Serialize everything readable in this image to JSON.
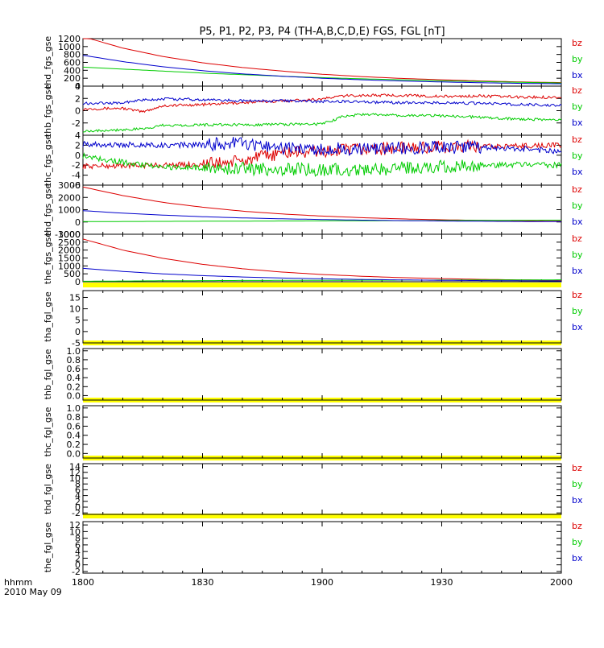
{
  "title": "P5, P1, P2, P3, P4 (TH-A,B,C,D,E) FGS, FGL [nT]",
  "time_axis": {
    "label_line1": "hhmm",
    "label_line2": "2010 May 09",
    "ticks": [
      "1800",
      "1830",
      "1900",
      "1930",
      "2000"
    ]
  },
  "colors": {
    "bx": "#0000cc",
    "by": "#00cc00",
    "bz": "#dd0000",
    "bar": "#ffff00",
    "axis": "#000000"
  },
  "chart_data": [
    {
      "type": "line",
      "panel": "thd_fgs_gse",
      "ylabel": "thd_fgs_gse",
      "ylim": [
        0,
        1200
      ],
      "yticks": [
        "0",
        "200",
        "400",
        "600",
        "800",
        "1000",
        "1200"
      ],
      "legend": [
        "bz",
        "by",
        "bx"
      ],
      "x_minutes": [
        0,
        10,
        20,
        30,
        40,
        50,
        60,
        70,
        80,
        90,
        100,
        110,
        120
      ],
      "series": [
        {
          "name": "bz",
          "values": [
            1250,
            960,
            750,
            590,
            470,
            380,
            300,
            240,
            195,
            160,
            130,
            105,
            90
          ]
        },
        {
          "name": "by",
          "values": [
            480,
            430,
            380,
            330,
            290,
            250,
            215,
            185,
            160,
            135,
            115,
            95,
            80
          ]
        },
        {
          "name": "bx",
          "values": [
            780,
            620,
            490,
            390,
            310,
            250,
            200,
            160,
            130,
            105,
            85,
            70,
            60
          ]
        }
      ]
    },
    {
      "type": "line",
      "panel": "thb_fgs_gse",
      "ylabel": "thb_fgs_gse",
      "ylim": [
        -4,
        4
      ],
      "yticks": [
        "-2",
        "0",
        "2",
        "4"
      ],
      "legend": [
        "bz",
        "by",
        "bx"
      ],
      "x_minutes": [
        0,
        10,
        15,
        20,
        30,
        40,
        50,
        60,
        65,
        70,
        80,
        90,
        100,
        110,
        120
      ],
      "series": [
        {
          "name": "bz",
          "values": [
            0.3,
            0.4,
            -0.2,
            0.8,
            1.0,
            1.3,
            1.6,
            1.9,
            2.4,
            2.5,
            2.5,
            2.3,
            2.4,
            2.2,
            2.2
          ]
        },
        {
          "name": "by",
          "values": [
            -3.3,
            -3.1,
            -3.0,
            -2.4,
            -2.3,
            -2.3,
            -2.2,
            -2.2,
            -1.0,
            -0.6,
            -0.8,
            -0.8,
            -1.1,
            -1.4,
            -1.5
          ]
        },
        {
          "name": "bx",
          "values": [
            1.2,
            1.3,
            1.7,
            1.9,
            1.8,
            1.6,
            1.6,
            1.5,
            1.5,
            1.4,
            1.3,
            1.3,
            1.2,
            1.0,
            0.9
          ]
        }
      ]
    },
    {
      "type": "line",
      "panel": "thc_fgs_gse",
      "ylabel": "thc_fgs_gse",
      "ylim": [
        -6,
        4
      ],
      "yticks": [
        "-6",
        "-4",
        "-2",
        "0",
        "2",
        "4"
      ],
      "legend": [
        "bz",
        "by",
        "bx"
      ],
      "x_minutes": [
        0,
        10,
        20,
        30,
        40,
        50,
        60,
        70,
        80,
        90,
        100,
        110,
        120
      ],
      "series": [
        {
          "name": "bz",
          "values": [
            -2.2,
            -2.1,
            -2.0,
            -1.8,
            -1.2,
            0.5,
            0.7,
            1.2,
            1.4,
            1.6,
            1.7,
            1.9,
            2.0
          ]
        },
        {
          "name": "by",
          "values": [
            -0.1,
            -1.4,
            -2.4,
            -2.5,
            -2.7,
            -2.8,
            -2.9,
            -3.0,
            -2.6,
            -2.3,
            -2.1,
            -1.9,
            -2.0
          ]
        },
        {
          "name": "bx",
          "values": [
            2.2,
            2.1,
            2.0,
            2.1,
            2.4,
            1.4,
            1.2,
            1.3,
            1.5,
            1.6,
            1.6,
            1.3,
            0.7
          ]
        }
      ]
    },
    {
      "type": "line",
      "panel": "thd_fgs_gse",
      "ylabel": "thd_fgs_gse",
      "ylim": [
        -1000,
        3000
      ],
      "yticks": [
        "-1000",
        "0",
        "1000",
        "2000",
        "3000"
      ],
      "legend": [
        "bz",
        "by",
        "bx"
      ],
      "x_minutes": [
        0,
        10,
        20,
        30,
        40,
        50,
        60,
        70,
        80,
        90,
        100,
        110,
        120
      ],
      "series": [
        {
          "name": "bz",
          "values": [
            2850,
            2150,
            1600,
            1200,
            880,
            650,
            480,
            350,
            250,
            180,
            130,
            90,
            60
          ]
        },
        {
          "name": "by",
          "values": [
            30,
            40,
            50,
            60,
            70,
            80,
            90,
            100,
            110,
            120,
            130,
            140,
            150
          ]
        },
        {
          "name": "bx",
          "values": [
            920,
            720,
            560,
            430,
            330,
            260,
            200,
            150,
            110,
            80,
            60,
            40,
            30
          ]
        }
      ]
    },
    {
      "type": "line",
      "panel": "the_fgs_gse",
      "ylabel": "the_fgs_gse",
      "ylim": [
        0,
        3000
      ],
      "yticks": [
        "0",
        "500",
        "1000",
        "1500",
        "2000",
        "2500",
        "3000"
      ],
      "legend": [
        "bz",
        "by",
        "bx"
      ],
      "x_minutes": [
        0,
        10,
        20,
        30,
        40,
        50,
        60,
        70,
        80,
        90,
        100,
        110,
        120
      ],
      "series": [
        {
          "name": "bz",
          "values": [
            2700,
            2000,
            1480,
            1100,
            820,
            610,
            460,
            345,
            260,
            195,
            150,
            115,
            90
          ]
        },
        {
          "name": "by",
          "values": [
            30,
            45,
            60,
            70,
            80,
            85,
            90,
            95,
            100,
            105,
            110,
            115,
            120
          ]
        },
        {
          "name": "bx",
          "values": [
            850,
            650,
            500,
            385,
            300,
            235,
            185,
            145,
            115,
            90,
            72,
            58,
            48
          ]
        }
      ]
    },
    {
      "type": "line",
      "panel": "tha_fgl_gse",
      "ylabel": "tha_fgl_gse",
      "ylim": [
        -5,
        18
      ],
      "yticks": [
        "-5",
        "0",
        "5",
        "10",
        "15"
      ],
      "legend": [
        "bz",
        "by",
        "bx"
      ],
      "series": []
    },
    {
      "type": "line",
      "panel": "thb_fgl_gse",
      "ylabel": "thb_fgl_gse",
      "ylim": [
        -0.1,
        1.05
      ],
      "yticks": [
        "0.0",
        "0.2",
        "0.4",
        "0.6",
        "0.8",
        "1.0"
      ],
      "legend": [],
      "series": []
    },
    {
      "type": "line",
      "panel": "thc_fgl_gse",
      "ylabel": "thc_fgl_gse",
      "ylim": [
        -0.1,
        1.05
      ],
      "yticks": [
        "0.0",
        "0.2",
        "0.4",
        "0.6",
        "0.8",
        "1.0"
      ],
      "legend": [],
      "series": []
    },
    {
      "type": "line",
      "panel": "thd_fgl_gse",
      "ylabel": "thd_fgl_gse",
      "ylim": [
        -2.5,
        15
      ],
      "yticks": [
        "-2",
        "0",
        "2",
        "4",
        "6",
        "8",
        "10",
        "12",
        "14"
      ],
      "legend": [
        "bz",
        "by",
        "bx"
      ],
      "series": []
    },
    {
      "type": "line",
      "panel": "the_fgl_gse",
      "ylabel": "the_fgl_gse",
      "ylim": [
        -2.5,
        13
      ],
      "yticks": [
        "-2",
        "0",
        "2",
        "4",
        "6",
        "8",
        "10",
        "12"
      ],
      "legend": [
        "bz",
        "by",
        "bx"
      ],
      "series": []
    }
  ]
}
